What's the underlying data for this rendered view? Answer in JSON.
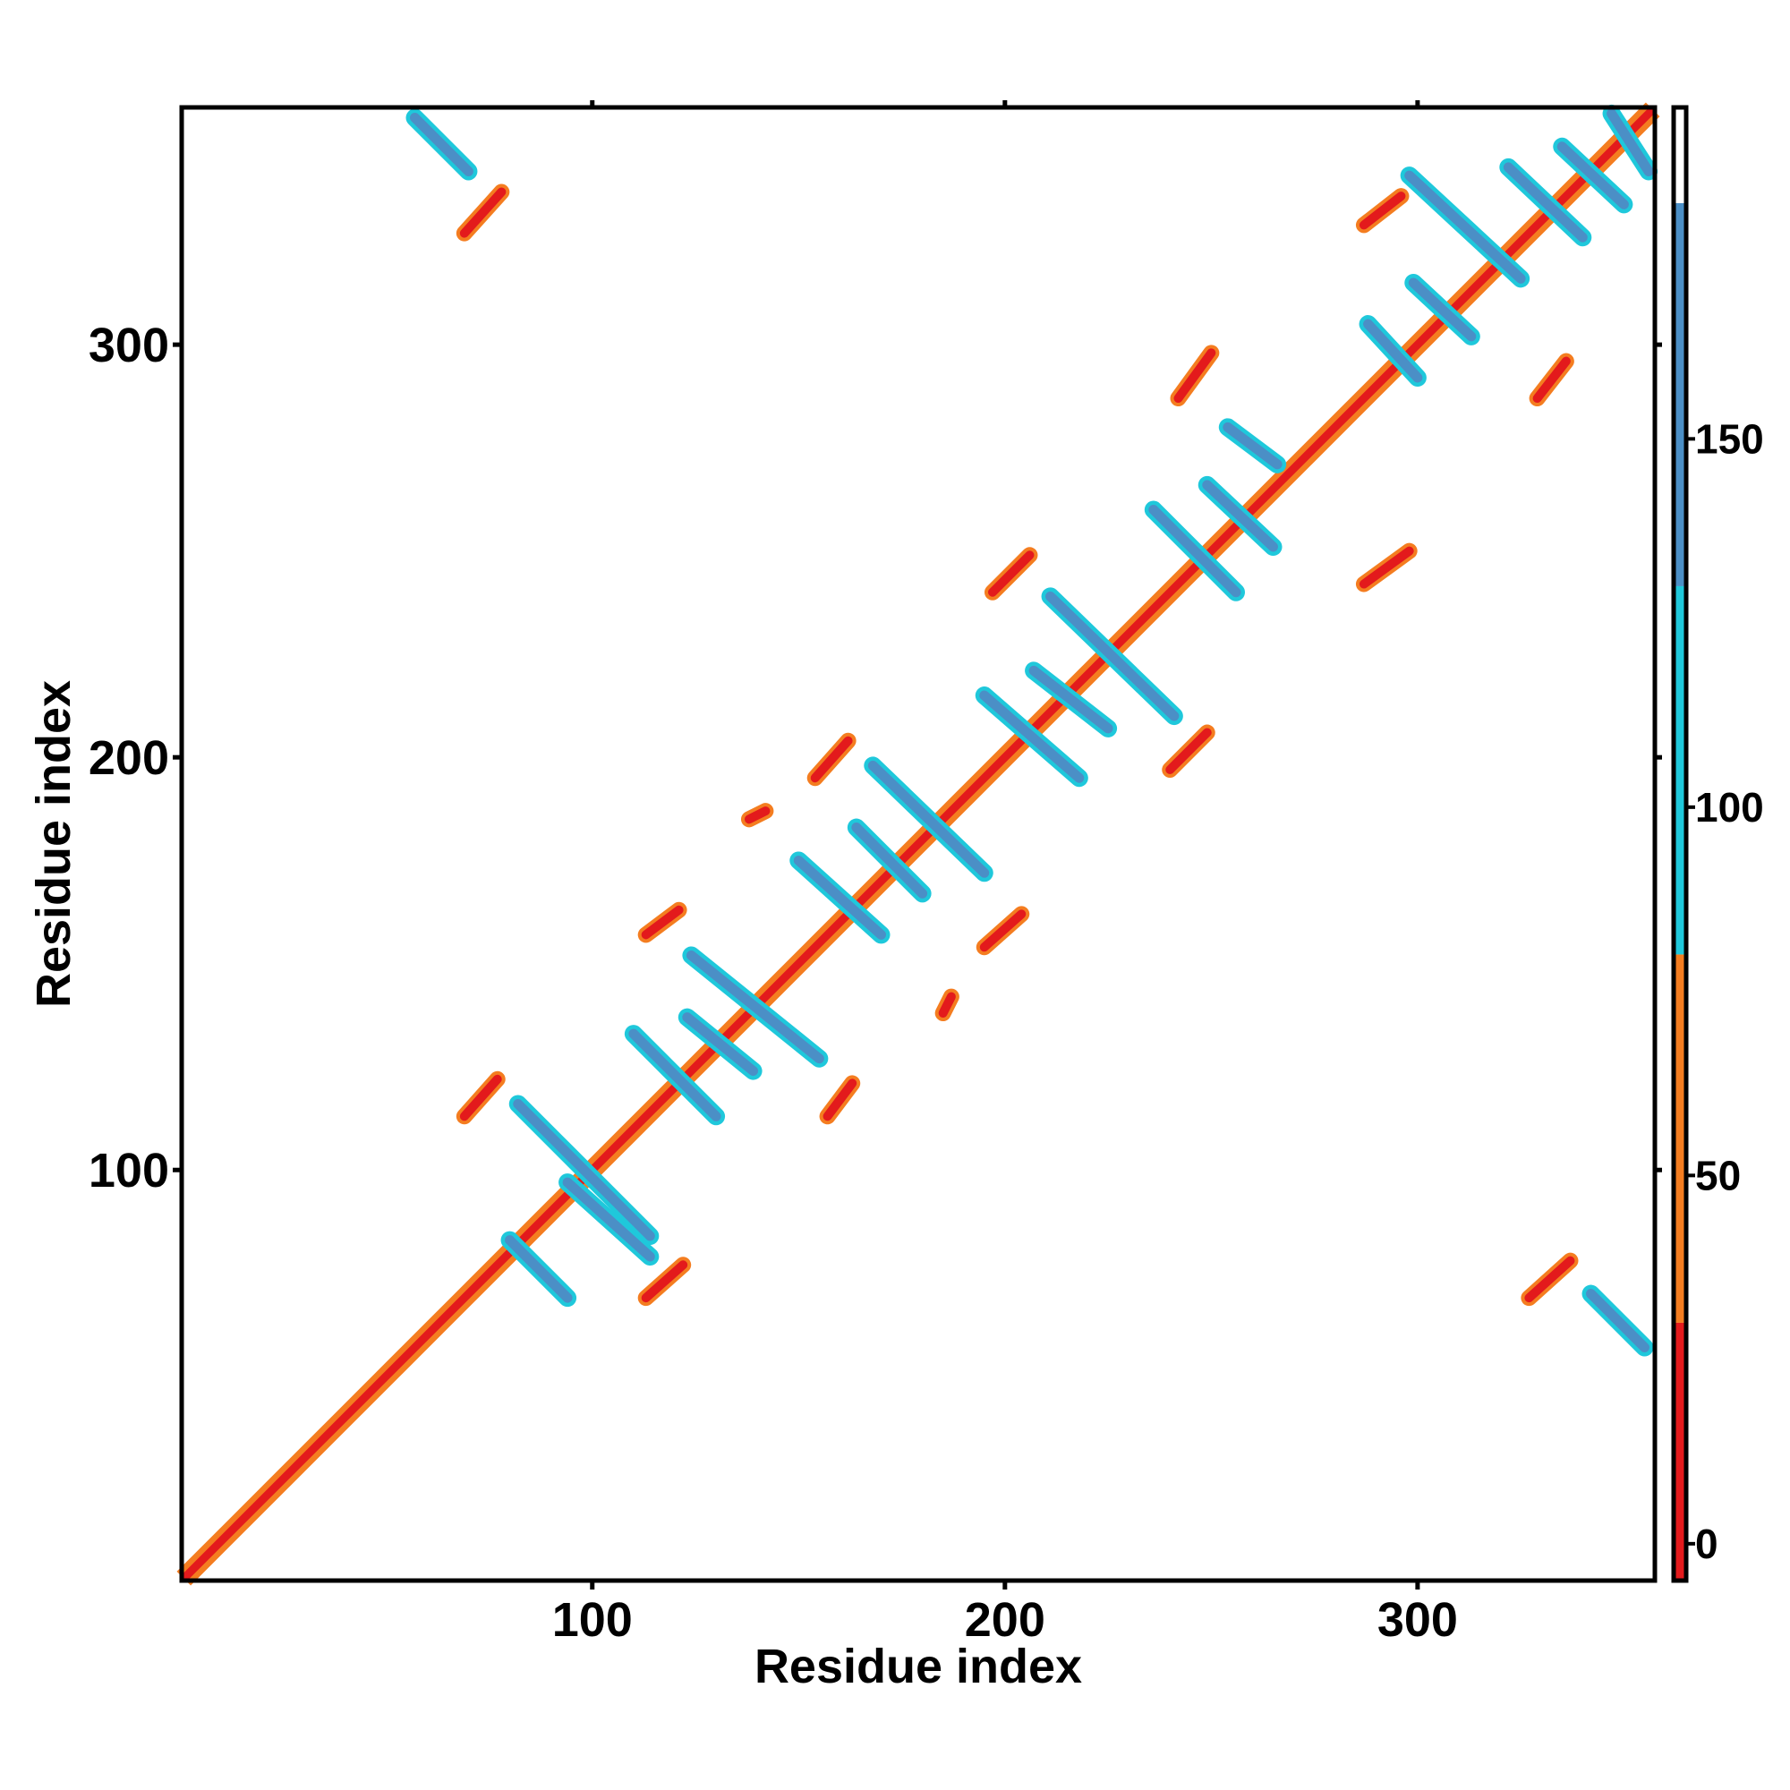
{
  "chart_data": {
    "type": "heatmap",
    "title": "",
    "xlabel": "Residue index",
    "ylabel": "Residue index",
    "xlim": [
      1,
      357
    ],
    "ylim": [
      1,
      357
    ],
    "x_ticks": [
      100,
      200,
      300
    ],
    "y_ticks": [
      100,
      200,
      300
    ],
    "colorbar": {
      "ticks": [
        0,
        50,
        100,
        150
      ],
      "range": [
        -5,
        195
      ],
      "bands": [
        {
          "from": -5,
          "to": 30,
          "color": "#e31a1c"
        },
        {
          "from": 30,
          "to": 80,
          "color": "#f47d20"
        },
        {
          "from": 80,
          "to": 130,
          "color": "#1fc8db"
        },
        {
          "from": 130,
          "to": 182,
          "color": "#4b8fc6"
        },
        {
          "from": 182,
          "to": 195,
          "color": "#ffffff"
        }
      ]
    },
    "diagonal": {
      "from": 1,
      "to": 357
    },
    "features": [
      {
        "kind": "antiparallel",
        "x0": 80,
        "y0": 83,
        "x1": 94,
        "y1": 69,
        "value": 155
      },
      {
        "kind": "antiparallel",
        "x0": 94,
        "y0": 97,
        "x1": 114,
        "y1": 79,
        "value": 150
      },
      {
        "kind": "antiparallel",
        "x0": 82,
        "y0": 116,
        "x1": 114,
        "y1": 84,
        "value": 150
      },
      {
        "kind": "antiparallel",
        "x0": 110,
        "y0": 133,
        "x1": 130,
        "y1": 113,
        "value": 150
      },
      {
        "kind": "antiparallel",
        "x0": 123,
        "y0": 137,
        "x1": 139,
        "y1": 124,
        "value": 150
      },
      {
        "kind": "antiparallel",
        "x0": 124,
        "y0": 152,
        "x1": 155,
        "y1": 127,
        "value": 150
      },
      {
        "kind": "antiparallel",
        "x0": 150,
        "y0": 175,
        "x1": 170,
        "y1": 157,
        "value": 150
      },
      {
        "kind": "antiparallel",
        "x0": 164,
        "y0": 183,
        "x1": 180,
        "y1": 167,
        "value": 150
      },
      {
        "kind": "antiparallel",
        "x0": 168,
        "y0": 198,
        "x1": 195,
        "y1": 172,
        "value": 150
      },
      {
        "kind": "antiparallel",
        "x0": 195,
        "y0": 215,
        "x1": 218,
        "y1": 195,
        "value": 150
      },
      {
        "kind": "antiparallel",
        "x0": 207,
        "y0": 221,
        "x1": 225,
        "y1": 207,
        "value": 150
      },
      {
        "kind": "antiparallel",
        "x0": 211,
        "y0": 239,
        "x1": 241,
        "y1": 210,
        "value": 150
      },
      {
        "kind": "antiparallel",
        "x0": 236,
        "y0": 260,
        "x1": 256,
        "y1": 240,
        "value": 150
      },
      {
        "kind": "antiparallel",
        "x0": 249,
        "y0": 266,
        "x1": 265,
        "y1": 251,
        "value": 150
      },
      {
        "kind": "antiparallel",
        "x0": 254,
        "y0": 280,
        "x1": 266,
        "y1": 271,
        "value": 150
      },
      {
        "kind": "antiparallel",
        "x0": 288,
        "y0": 305,
        "x1": 300,
        "y1": 292,
        "value": 150
      },
      {
        "kind": "antiparallel",
        "x0": 299,
        "y0": 315,
        "x1": 313,
        "y1": 302,
        "value": 150
      },
      {
        "kind": "antiparallel",
        "x0": 298,
        "y0": 341,
        "x1": 325,
        "y1": 316,
        "value": 150
      },
      {
        "kind": "antiparallel",
        "x0": 322,
        "y0": 343,
        "x1": 340,
        "y1": 326,
        "value": 150
      },
      {
        "kind": "antiparallel",
        "x0": 335,
        "y0": 348,
        "x1": 350,
        "y1": 334,
        "value": 150
      },
      {
        "kind": "antiparallel",
        "x0": 347,
        "y0": 356,
        "x1": 356,
        "y1": 342,
        "value": 150
      },
      {
        "kind": "antiparallel",
        "x0": 57,
        "y0": 355,
        "x1": 70,
        "y1": 342,
        "value": 150
      },
      {
        "kind": "antiparallel",
        "x0": 342,
        "y0": 70,
        "x1": 355,
        "y1": 57,
        "value": 150
      },
      {
        "kind": "contact",
        "x0": 69,
        "y0": 327,
        "x1": 78,
        "y1": 337,
        "value": 10
      },
      {
        "kind": "contact",
        "x0": 327,
        "y0": 69,
        "x1": 337,
        "y1": 78,
        "value": 10
      },
      {
        "kind": "contact",
        "x0": 69,
        "y0": 113,
        "x1": 77,
        "y1": 122,
        "value": 10
      },
      {
        "kind": "contact",
        "x0": 113,
        "y0": 69,
        "x1": 122,
        "y1": 77,
        "value": 10
      },
      {
        "kind": "contact",
        "x0": 113,
        "y0": 157,
        "x1": 121,
        "y1": 163,
        "value": 10
      },
      {
        "kind": "contact",
        "x0": 157,
        "y0": 113,
        "x1": 163,
        "y1": 121,
        "value": 10
      },
      {
        "kind": "contact",
        "x0": 154,
        "y0": 195,
        "x1": 162,
        "y1": 204,
        "value": 10
      },
      {
        "kind": "contact",
        "x0": 195,
        "y0": 154,
        "x1": 204,
        "y1": 162,
        "value": 10
      },
      {
        "kind": "contact",
        "x0": 197,
        "y0": 240,
        "x1": 206,
        "y1": 249,
        "value": 10
      },
      {
        "kind": "contact",
        "x0": 240,
        "y0": 197,
        "x1": 249,
        "y1": 206,
        "value": 10
      },
      {
        "kind": "contact",
        "x0": 242,
        "y0": 287,
        "x1": 250,
        "y1": 298,
        "value": 10
      },
      {
        "kind": "contact",
        "x0": 287,
        "y0": 242,
        "x1": 298,
        "y1": 250,
        "value": 10
      },
      {
        "kind": "contact",
        "x0": 287,
        "y0": 329,
        "x1": 296,
        "y1": 336,
        "value": 10
      },
      {
        "kind": "contact",
        "x0": 329,
        "y0": 287,
        "x1": 336,
        "y1": 296,
        "value": 10
      },
      {
        "kind": "contact",
        "x0": 138,
        "y0": 185,
        "x1": 142,
        "y1": 187,
        "value": 10
      },
      {
        "kind": "contact",
        "x0": 185,
        "y0": 138,
        "x1": 187,
        "y1": 142,
        "value": 10
      }
    ]
  }
}
